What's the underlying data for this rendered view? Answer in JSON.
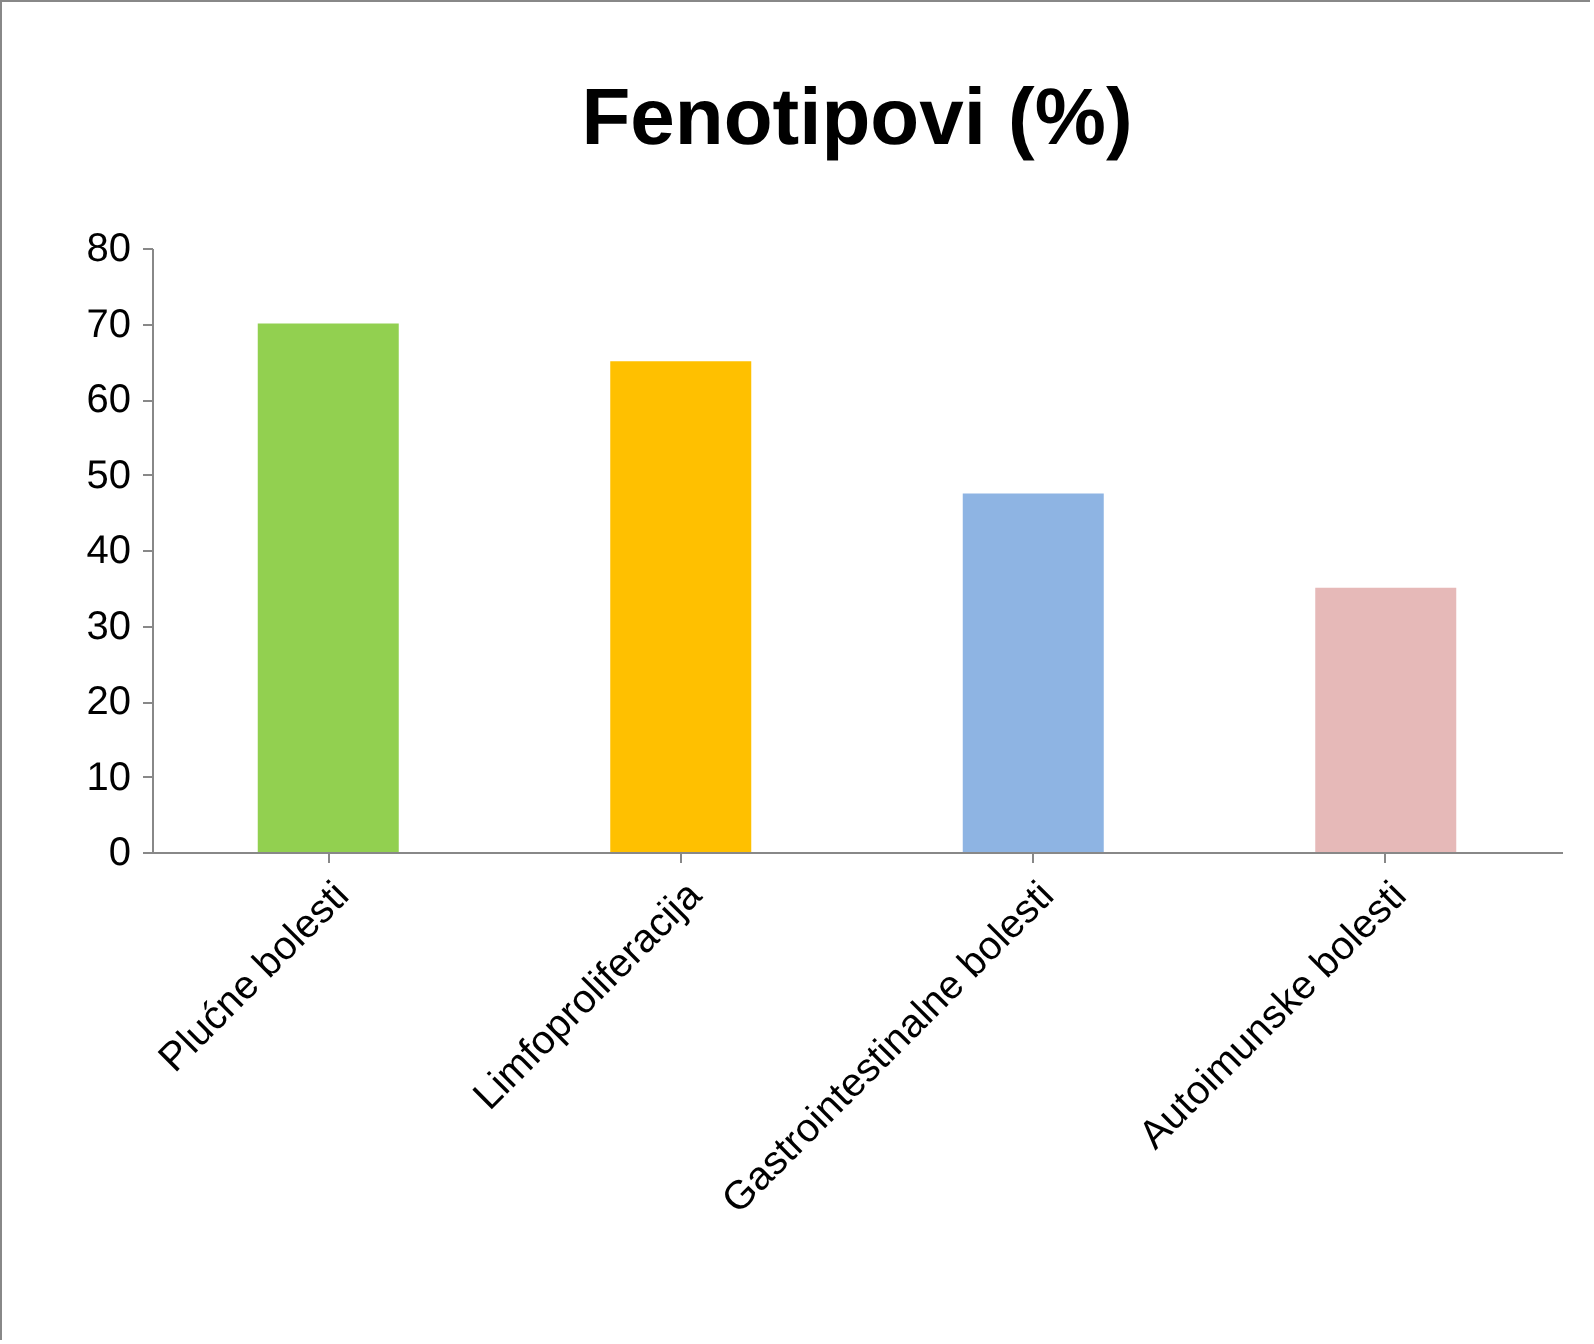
{
  "chart_data": {
    "type": "bar",
    "title": "Fenotipovi (%)",
    "categories": [
      "Plućne bolesti",
      "Limfoproliferacija",
      "Gastrointestinalne bolesti",
      "Autoimunske bolesti"
    ],
    "values": [
      70,
      65,
      47.5,
      35
    ],
    "colors": [
      "#92d050",
      "#ffc000",
      "#8eb4e3",
      "#e6b9b8"
    ],
    "ylim": [
      0,
      80
    ],
    "yticks": [
      0,
      10,
      20,
      30,
      40,
      50,
      60,
      70,
      80
    ],
    "grid": false,
    "legend": false
  }
}
